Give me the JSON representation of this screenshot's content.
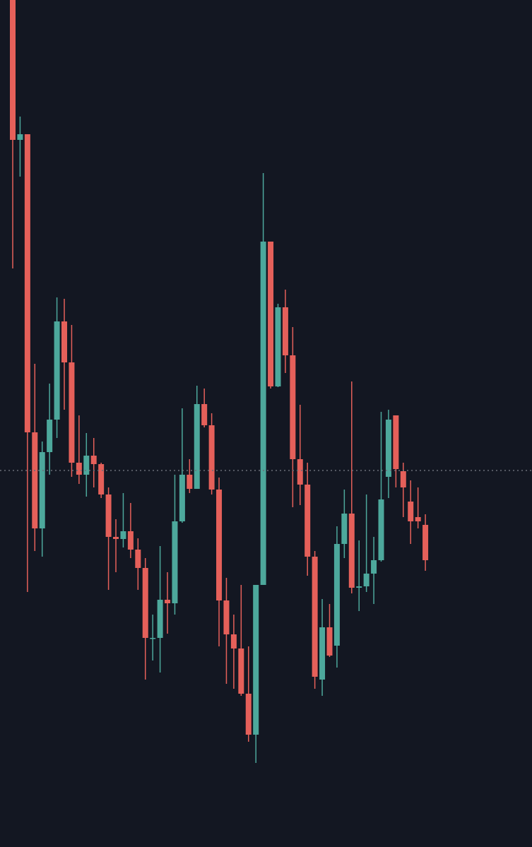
{
  "chart_data": {
    "type": "candlestick",
    "ylim": [
      0,
      1199
    ],
    "up_color": "#4da89c",
    "down_color": "#e5605a",
    "background": "#131722",
    "price_line": 533,
    "open": [
      1199,
      1001,
      1009,
      587,
      451,
      559,
      605,
      744,
      686,
      544,
      527,
      554,
      542,
      499,
      439,
      436,
      447,
      421,
      395,
      295,
      296,
      350,
      345,
      461,
      527,
      507,
      627,
      597,
      506,
      349,
      301,
      281,
      217,
      159,
      371,
      857,
      652,
      764,
      696,
      549,
      513,
      411,
      237,
      311,
      285,
      429,
      472,
      367,
      369,
      387,
      406,
      524,
      611,
      532,
      489,
      467,
      456
    ],
    "high": [
      1199,
      1034,
      1009,
      684,
      574,
      656,
      778,
      776,
      739,
      611,
      586,
      579,
      544,
      509,
      464,
      501,
      487,
      437,
      409,
      329,
      426,
      389,
      527,
      621,
      549,
      653,
      649,
      614,
      523,
      381,
      329,
      371,
      284,
      371,
      954,
      857,
      769,
      789,
      736,
      626,
      544,
      419,
      351,
      344,
      454,
      506,
      659,
      434,
      499,
      439,
      616,
      619,
      611,
      544,
      519,
      509,
      471
    ],
    "low": [
      819,
      949,
      361,
      419,
      411,
      527,
      579,
      619,
      524,
      514,
      496,
      509,
      494,
      364,
      389,
      424,
      409,
      364,
      237,
      264,
      247,
      302,
      329,
      459,
      501,
      507,
      594,
      499,
      284,
      231,
      224,
      214,
      149,
      119,
      371,
      649,
      651,
      671,
      481,
      484,
      384,
      224,
      214,
      269,
      254,
      409,
      359,
      334,
      361,
      344,
      404,
      494,
      509,
      467,
      429,
      451,
      391
    ],
    "close": [
      1001,
      1009,
      587,
      451,
      559,
      605,
      744,
      686,
      544,
      527,
      554,
      542,
      499,
      439,
      436,
      447,
      421,
      395,
      296,
      296,
      350,
      345,
      461,
      527,
      507,
      627,
      597,
      506,
      349,
      301,
      281,
      217,
      159,
      371,
      857,
      652,
      764,
      696,
      549,
      513,
      411,
      241,
      311,
      271,
      429,
      472,
      367,
      369,
      387,
      406,
      492,
      605,
      535,
      509,
      461,
      461,
      406
    ]
  }
}
